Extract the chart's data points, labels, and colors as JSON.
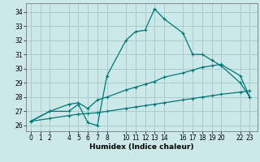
{
  "xlabel": "Humidex (Indice chaleur)",
  "bg_color": "#cce8e8",
  "grid_color": "#aacccc",
  "line_color": "#007777",
  "xlim": [
    -0.5,
    23.8
  ],
  "ylim": [
    25.6,
    34.6
  ],
  "xticks": [
    0,
    1,
    2,
    4,
    5,
    6,
    7,
    8,
    10,
    11,
    12,
    13,
    14,
    16,
    17,
    18,
    19,
    20,
    22,
    23
  ],
  "yticks": [
    26,
    27,
    28,
    29,
    30,
    31,
    32,
    33,
    34
  ],
  "line1_x": [
    0,
    2,
    4,
    5,
    6,
    7,
    8,
    10,
    11,
    12,
    13,
    14,
    16,
    17,
    18,
    19,
    20,
    22,
    23
  ],
  "line1_y": [
    26.3,
    27.0,
    27.0,
    27.5,
    26.2,
    26.0,
    29.5,
    32.0,
    32.6,
    32.7,
    34.2,
    33.5,
    32.5,
    31.0,
    31.0,
    30.6,
    30.2,
    29.0,
    28.0
  ],
  "line2_x": [
    0,
    2,
    4,
    5,
    6,
    7,
    8,
    10,
    11,
    12,
    13,
    14,
    16,
    17,
    18,
    19,
    20,
    22,
    23
  ],
  "line2_y": [
    26.3,
    27.0,
    27.5,
    27.6,
    27.2,
    27.8,
    28.0,
    28.5,
    28.7,
    28.9,
    29.1,
    29.4,
    29.7,
    29.9,
    30.1,
    30.2,
    30.3,
    29.5,
    28.0
  ],
  "line3_x": [
    0,
    2,
    4,
    5,
    6,
    7,
    8,
    10,
    11,
    12,
    13,
    14,
    16,
    17,
    18,
    19,
    20,
    22,
    23
  ],
  "line3_y": [
    26.3,
    26.5,
    26.7,
    26.8,
    26.85,
    26.9,
    27.0,
    27.2,
    27.3,
    27.4,
    27.5,
    27.6,
    27.8,
    27.9,
    28.0,
    28.1,
    28.2,
    28.35,
    28.45
  ]
}
